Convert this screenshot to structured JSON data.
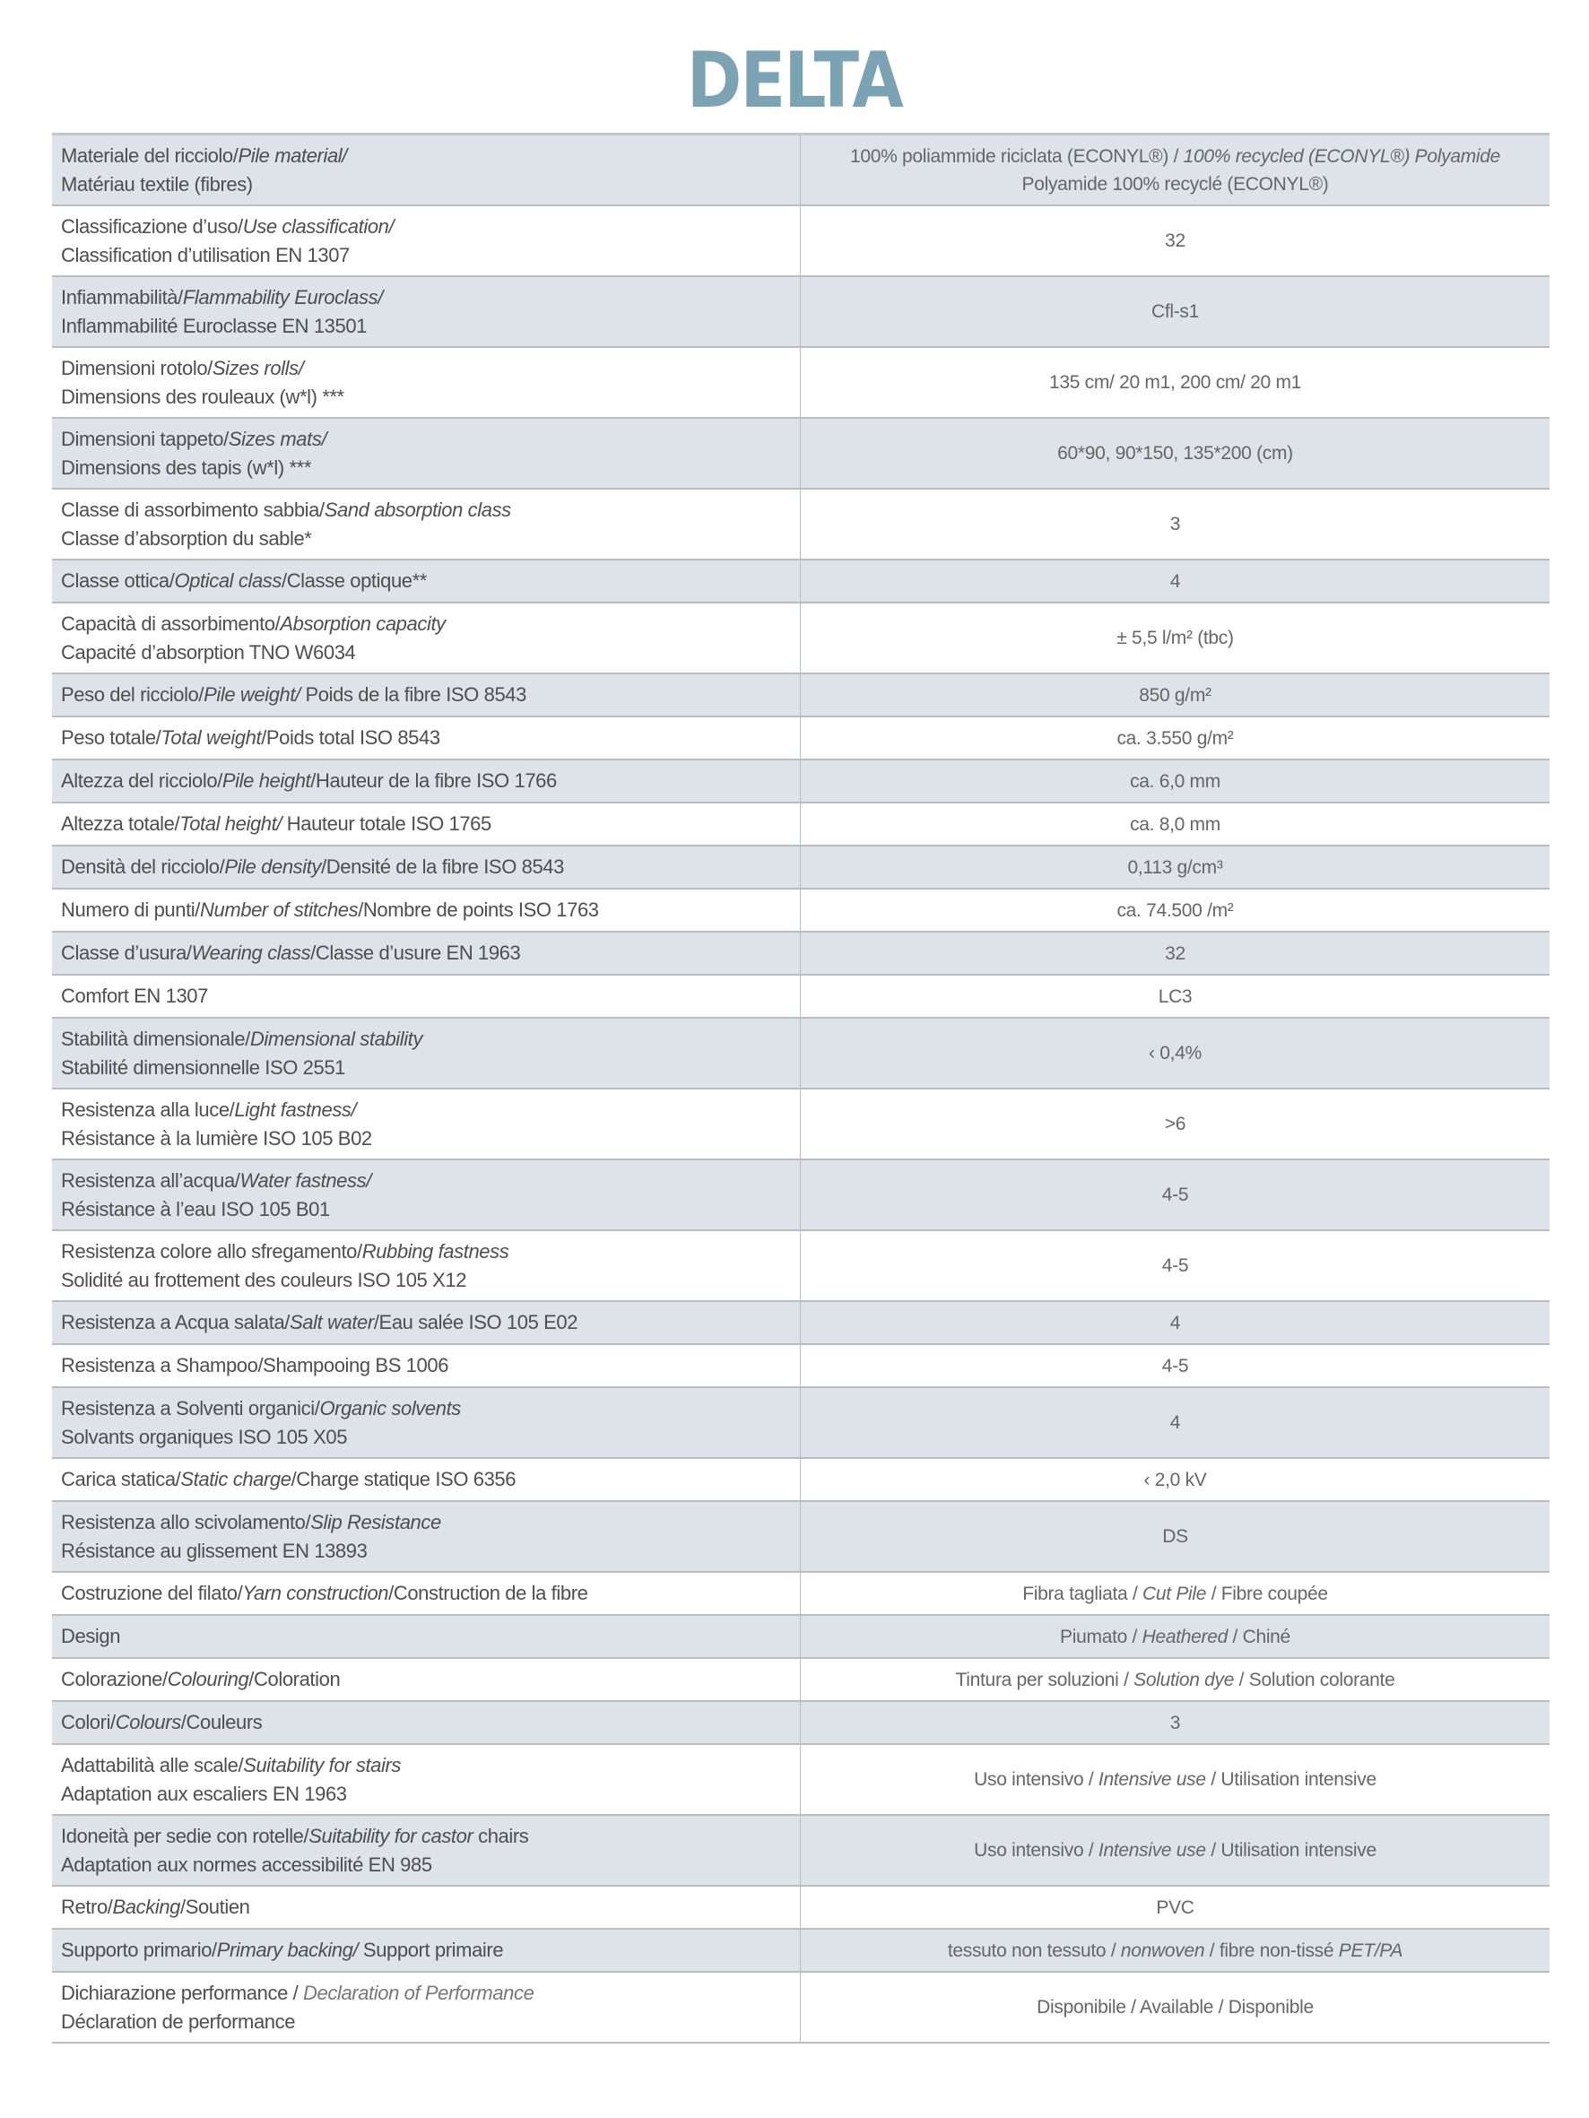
{
  "title": "DELTA",
  "colors": {
    "title": "#7ba3b4",
    "shaded_row": "#dde3e8",
    "border": "#b9bdc1"
  },
  "rows": [
    {
      "label": [
        [
          {
            "t": "Materiale del ricciolo/"
          },
          {
            "t": "Pile material/",
            "i": true
          }
        ],
        [
          {
            "t": "Matériau textile (fibres)"
          }
        ]
      ],
      "value": [
        [
          {
            "t": "100% poliammide riciclata (ECONYL®) / "
          },
          {
            "t": "100% recycled (ECONYL®) Polyamide",
            "i": true
          }
        ],
        [
          {
            "t": "Polyamide 100% recyclé (ECONYL®)"
          }
        ]
      ]
    },
    {
      "label": [
        [
          {
            "t": "Classificazione d’uso/"
          },
          {
            "t": "Use classification/",
            "i": true
          }
        ],
        [
          {
            "t": "Classification d’utilisation EN 1307"
          }
        ]
      ],
      "value": [
        [
          {
            "t": "32"
          }
        ]
      ]
    },
    {
      "label": [
        [
          {
            "t": "Infiammabilità/"
          },
          {
            "t": "Flammability Euroclass/",
            "i": true
          }
        ],
        [
          {
            "t": "Inflammabilité Euroclasse EN 13501"
          }
        ]
      ],
      "value": [
        [
          {
            "t": "Cfl-s1"
          }
        ]
      ]
    },
    {
      "label": [
        [
          {
            "t": "Dimensioni rotolo/"
          },
          {
            "t": "Sizes rolls/",
            "i": true
          }
        ],
        [
          {
            "t": "Dimensions des rouleaux (w*l) ***"
          }
        ]
      ],
      "value": [
        [
          {
            "t": "135 cm/ 20 m1, 200 cm/ 20 m1"
          }
        ]
      ]
    },
    {
      "label": [
        [
          {
            "t": "Dimensioni tappeto/"
          },
          {
            "t": "Sizes mats/",
            "i": true
          }
        ],
        [
          {
            "t": "Dimensions des tapis (w*l) ***"
          }
        ]
      ],
      "value": [
        [
          {
            "t": "60*90, 90*150, 135*200 (cm)"
          }
        ]
      ]
    },
    {
      "label": [
        [
          {
            "t": "Classe di assorbimento sabbia/"
          },
          {
            "t": "Sand absorption class",
            "i": true
          }
        ],
        [
          {
            "t": "Classe d’absorption du sable*"
          }
        ]
      ],
      "value": [
        [
          {
            "t": "3"
          }
        ]
      ]
    },
    {
      "label": [
        [
          {
            "t": "Classe ottica/"
          },
          {
            "t": "Optical class",
            "i": true
          },
          {
            "t": "/Classe optique**"
          }
        ]
      ],
      "value": [
        [
          {
            "t": "4"
          }
        ]
      ]
    },
    {
      "label": [
        [
          {
            "t": "Capacità di assorbimento/"
          },
          {
            "t": "Absorption capacity",
            "i": true
          }
        ],
        [
          {
            "t": "Capacité d’absorption TNO W6034"
          }
        ]
      ],
      "value": [
        [
          {
            "t": "± 5,5 l/m² (tbc)"
          }
        ]
      ]
    },
    {
      "label": [
        [
          {
            "t": "Peso del ricciolo/"
          },
          {
            "t": "Pile weight/",
            "i": true
          },
          {
            "t": " Poids de la fibre ISO 8543"
          }
        ]
      ],
      "value": [
        [
          {
            "t": "850 g/m²"
          }
        ]
      ]
    },
    {
      "label": [
        [
          {
            "t": "Peso totale/"
          },
          {
            "t": "Total weight",
            "i": true
          },
          {
            "t": "/Poids total ISO 8543"
          }
        ]
      ],
      "value": [
        [
          {
            "t": "ca. 3.550 g/m²"
          }
        ]
      ]
    },
    {
      "label": [
        [
          {
            "t": "Altezza del ricciolo/"
          },
          {
            "t": "Pile height",
            "i": true
          },
          {
            "t": "/Hauteur de la fibre ISO 1766"
          }
        ]
      ],
      "value": [
        [
          {
            "t": "ca. 6,0 mm"
          }
        ]
      ]
    },
    {
      "label": [
        [
          {
            "t": "Altezza totale/"
          },
          {
            "t": "Total height/",
            "i": true
          },
          {
            "t": " Hauteur totale ISO 1765"
          }
        ]
      ],
      "value": [
        [
          {
            "t": "ca. 8,0 mm"
          }
        ]
      ]
    },
    {
      "label": [
        [
          {
            "t": "Densità del ricciolo/"
          },
          {
            "t": "Pile density",
            "i": true
          },
          {
            "t": "/Densité de la fibre ISO 8543"
          }
        ]
      ],
      "value": [
        [
          {
            "t": "0,113 g/cm³"
          }
        ]
      ]
    },
    {
      "label": [
        [
          {
            "t": "Numero di punti/"
          },
          {
            "t": "Number of stitches",
            "i": true
          },
          {
            "t": "/Nombre de points ISO 1763"
          }
        ]
      ],
      "value": [
        [
          {
            "t": "ca. 74.500 /m²"
          }
        ]
      ]
    },
    {
      "label": [
        [
          {
            "t": "Classe d’usura/"
          },
          {
            "t": "Wearing class",
            "i": true
          },
          {
            "t": "/Classe d’usure EN 1963"
          }
        ]
      ],
      "value": [
        [
          {
            "t": "32"
          }
        ]
      ]
    },
    {
      "label": [
        [
          {
            "t": "Comfort EN 1307"
          }
        ]
      ],
      "value": [
        [
          {
            "t": "LC3"
          }
        ]
      ]
    },
    {
      "label": [
        [
          {
            "t": "Stabilità dimensionale/"
          },
          {
            "t": "Dimensional stability",
            "i": true
          }
        ],
        [
          {
            "t": "Stabilité dimensionnelle ISO 2551"
          }
        ]
      ],
      "value": [
        [
          {
            "t": "‹ 0,4%"
          }
        ]
      ]
    },
    {
      "label": [
        [
          {
            "t": "Resistenza alla luce/"
          },
          {
            "t": "Light fastness/",
            "i": true
          }
        ],
        [
          {
            "t": "Résistance à la lumière ISO 105 B02"
          }
        ]
      ],
      "value": [
        [
          {
            "t": ">6"
          }
        ]
      ]
    },
    {
      "label": [
        [
          {
            "t": "Resistenza all’acqua/"
          },
          {
            "t": "Water fastness/",
            "i": true
          }
        ],
        [
          {
            "t": "Résistance à l’eau ISO 105 B01"
          }
        ]
      ],
      "value": [
        [
          {
            "t": "4-5"
          }
        ]
      ]
    },
    {
      "label": [
        [
          {
            "t": "Resistenza colore allo sfregamento/"
          },
          {
            "t": "Rubbing fastness",
            "i": true
          }
        ],
        [
          {
            "t": "Solidité au frottement des couleurs ISO 105 X12"
          }
        ]
      ],
      "value": [
        [
          {
            "t": "4-5"
          }
        ]
      ]
    },
    {
      "label": [
        [
          {
            "t": "Resistenza a Acqua salata/"
          },
          {
            "t": "Salt water",
            "i": true
          },
          {
            "t": "/Eau salée ISO 105 E02"
          }
        ]
      ],
      "value": [
        [
          {
            "t": "4"
          }
        ]
      ]
    },
    {
      "label": [
        [
          {
            "t": "Resistenza a Shampoo/Shampooing BS 1006"
          }
        ]
      ],
      "value": [
        [
          {
            "t": "4-5"
          }
        ]
      ]
    },
    {
      "label": [
        [
          {
            "t": "Resistenza a Solventi organici/"
          },
          {
            "t": "Organic solvents",
            "i": true
          }
        ],
        [
          {
            "t": "Solvants organiques ISO 105 X05"
          }
        ]
      ],
      "value": [
        [
          {
            "t": "4"
          }
        ]
      ]
    },
    {
      "label": [
        [
          {
            "t": "Carica statica/"
          },
          {
            "t": "Static charge",
            "i": true
          },
          {
            "t": "/Charge statique ISO 6356"
          }
        ]
      ],
      "value": [
        [
          {
            "t": "‹ 2,0 kV"
          }
        ]
      ]
    },
    {
      "label": [
        [
          {
            "t": "Resistenza allo scivolamento/"
          },
          {
            "t": "Slip Resistance",
            "i": true
          }
        ],
        [
          {
            "t": "Résistance au glissement EN 13893"
          }
        ]
      ],
      "value": [
        [
          {
            "t": "DS"
          }
        ]
      ]
    },
    {
      "label": [
        [
          {
            "t": "Costruzione del filato/"
          },
          {
            "t": "Yarn construction",
            "i": true
          },
          {
            "t": "/Construction de la fibre"
          }
        ]
      ],
      "value": [
        [
          {
            "t": "Fibra tagliata / "
          },
          {
            "t": "Cut Pile",
            "i": true
          },
          {
            "t": " / Fibre coupée"
          }
        ]
      ]
    },
    {
      "label": [
        [
          {
            "t": "Design"
          }
        ]
      ],
      "value": [
        [
          {
            "t": "Piumato / "
          },
          {
            "t": "Heathered",
            "i": true
          },
          {
            "t": " / Chiné"
          }
        ]
      ]
    },
    {
      "label": [
        [
          {
            "t": "Colorazione/"
          },
          {
            "t": "Colouring",
            "i": true
          },
          {
            "t": "/Coloration"
          }
        ]
      ],
      "value": [
        [
          {
            "t": "Tintura per soluzioni / "
          },
          {
            "t": "Solution dye",
            "i": true
          },
          {
            "t": " / Solution colorante"
          }
        ]
      ]
    },
    {
      "label": [
        [
          {
            "t": "Colori/"
          },
          {
            "t": "Colours",
            "i": true
          },
          {
            "t": "/Couleurs"
          }
        ]
      ],
      "value": [
        [
          {
            "t": "3"
          }
        ]
      ]
    },
    {
      "label": [
        [
          {
            "t": "Adattabilità alle scale/"
          },
          {
            "t": "Suitability for stairs",
            "i": true
          }
        ],
        [
          {
            "t": "Adaptation aux escaliers EN 1963"
          }
        ]
      ],
      "value": [
        [
          {
            "t": "Uso intensivo / "
          },
          {
            "t": "Intensive use",
            "i": true
          },
          {
            "t": " / Utilisation intensive"
          }
        ]
      ]
    },
    {
      "label": [
        [
          {
            "t": "Idoneità per sedie con rotelle/"
          },
          {
            "t": "Suitability for castor",
            "i": true
          },
          {
            "t": " chairs"
          }
        ],
        [
          {
            "t": "Adaptation aux normes accessibilité EN 985"
          }
        ]
      ],
      "value": [
        [
          {
            "t": "Uso intensivo / "
          },
          {
            "t": "Intensive use",
            "i": true
          },
          {
            "t": " / Utilisation intensive"
          }
        ]
      ]
    },
    {
      "label": [
        [
          {
            "t": "Retro/"
          },
          {
            "t": "Backing",
            "i": true
          },
          {
            "t": "/Soutien"
          }
        ]
      ],
      "value": [
        [
          {
            "t": "PVC"
          }
        ]
      ]
    },
    {
      "label": [
        [
          {
            "t": "Supporto primario/"
          },
          {
            "t": "Primary backing/",
            "i": true
          },
          {
            "t": " Support primaire"
          }
        ]
      ],
      "value": [
        [
          {
            "t": "tessuto non tessuto / "
          },
          {
            "t": "nonwoven",
            "i": true
          },
          {
            "t": " /  fibre non-tissé "
          },
          {
            "t": "PET/PA",
            "i": true
          }
        ]
      ]
    },
    {
      "label": [
        [
          {
            "t": "Dichiarazione performance / "
          },
          {
            "t": "Declaration of Performance",
            "i": true,
            "light": true
          }
        ],
        [
          {
            "t": "Déclaration de performance"
          }
        ]
      ],
      "value": [
        [
          {
            "t": "Disponibile / Available / Disponible"
          }
        ]
      ]
    }
  ]
}
